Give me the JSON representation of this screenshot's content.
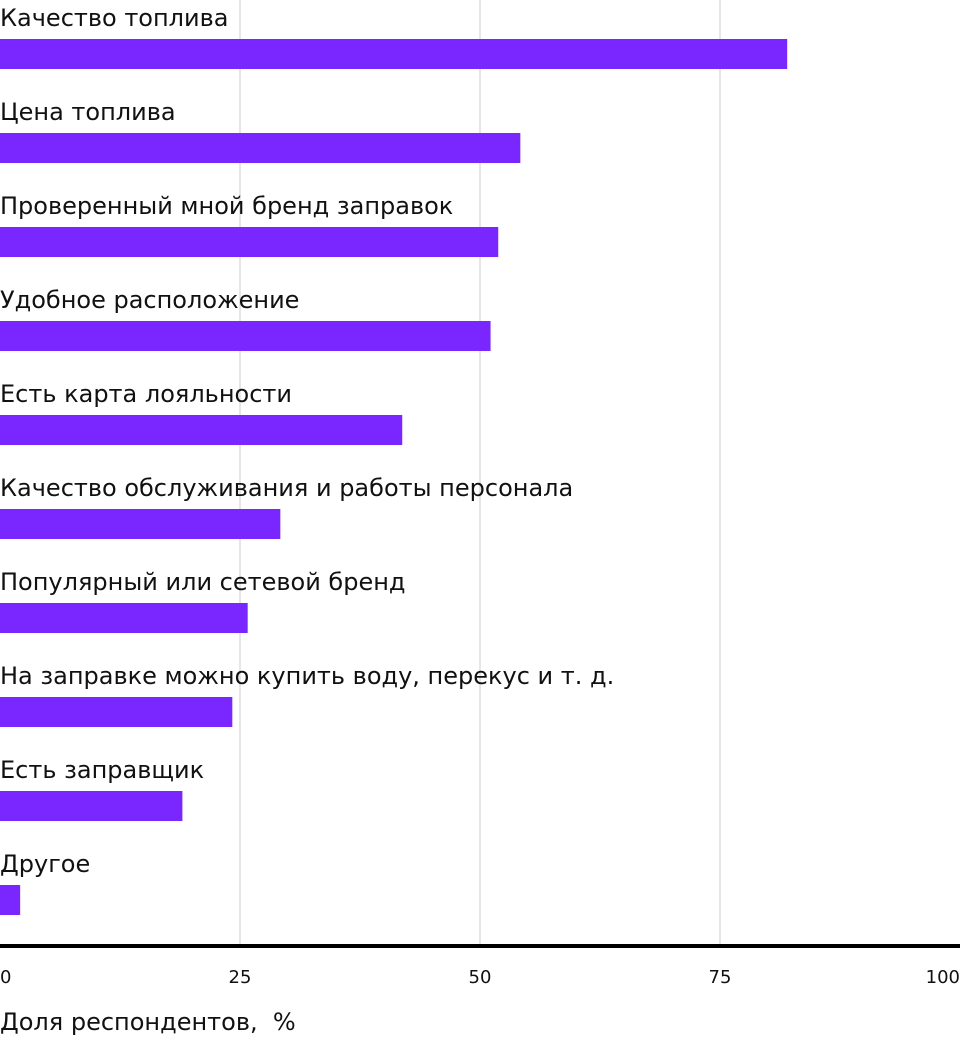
{
  "chart_data": {
    "type": "bar",
    "orientation": "horizontal",
    "categories": [
      "Качество топлива",
      "Цена топлива",
      "Проверенный мной бренд заправок",
      "Удобное расположение",
      "Есть карта лояльности",
      "Качество обслуживания и работы персонала",
      "Популярный или сетевой бренд",
      "На заправке можно купить воду, перекус и т. д.",
      "Есть заправщик",
      "Другое"
    ],
    "values": [
      82,
      54.2,
      51.9,
      51.1,
      41.9,
      29.2,
      25.8,
      24.2,
      19,
      2.1
    ],
    "xlabel": "Доля респондентов,  %",
    "xlim": [
      0,
      100
    ],
    "xticks": [
      0,
      25,
      50,
      75,
      100
    ],
    "grid": true,
    "colors": {
      "bar": "#7a26fe",
      "grid": "#e6e6e6",
      "axis": "#000000",
      "text": "#111111"
    }
  }
}
